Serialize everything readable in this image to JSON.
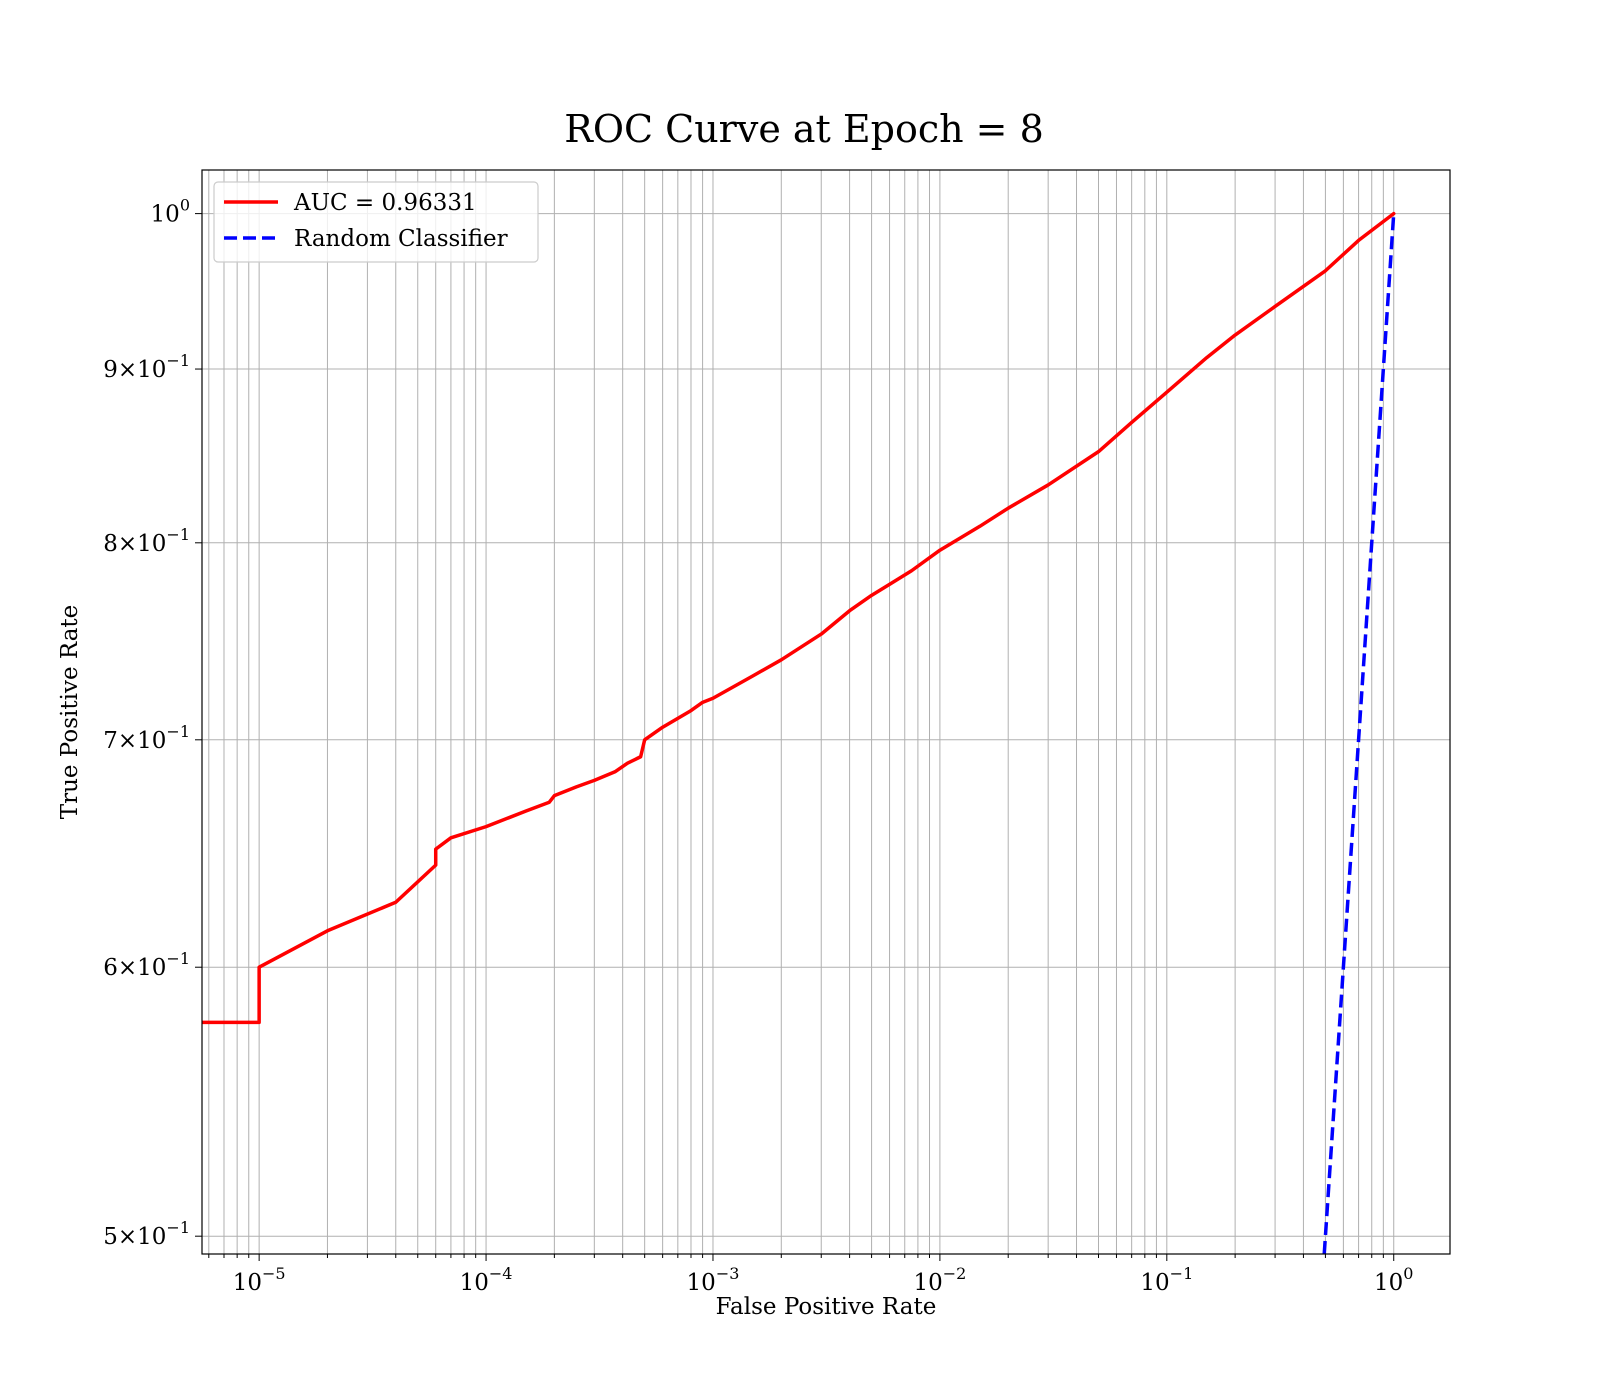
{
  "chart_data": {
    "type": "line",
    "title": "ROC Curve at Epoch = 8",
    "xlabel": "False Positive Rate",
    "ylabel": "True Positive Rate",
    "xscale": "log",
    "yscale": "log",
    "xlim": [
      5.6e-06,
      1.77
    ],
    "ylim": [
      0.494,
      1.03
    ],
    "grid": true,
    "legend_position": "top-left",
    "x_ticks": [
      {
        "base": "10",
        "exp": "−5",
        "value": 1e-05
      },
      {
        "base": "10",
        "exp": "−4",
        "value": 0.0001
      },
      {
        "base": "10",
        "exp": "−3",
        "value": 0.001
      },
      {
        "base": "10",
        "exp": "−2",
        "value": 0.01
      },
      {
        "base": "10",
        "exp": "−1",
        "value": 0.1
      },
      {
        "base": "10",
        "exp": "0",
        "value": 1
      }
    ],
    "y_ticks": [
      {
        "mant": "5",
        "base": "10",
        "exp": "−1",
        "value": 0.5
      },
      {
        "mant": "6",
        "base": "10",
        "exp": "−1",
        "value": 0.6
      },
      {
        "mant": "7",
        "base": "10",
        "exp": "−1",
        "value": 0.7
      },
      {
        "mant": "8",
        "base": "10",
        "exp": "−1",
        "value": 0.8
      },
      {
        "mant": "9",
        "base": "10",
        "exp": "−1",
        "value": 0.9
      },
      {
        "mant": "",
        "base": "10",
        "exp": "0",
        "value": 1
      }
    ],
    "series": [
      {
        "name": "AUC = 0.96331",
        "color": "#ff0000",
        "style": "solid",
        "points": [
          [
            5.6e-06,
            0.578
          ],
          [
            1e-05,
            0.578
          ],
          [
            1e-05,
            0.6
          ],
          [
            2e-05,
            0.615
          ],
          [
            4e-05,
            0.627
          ],
          [
            6e-05,
            0.643
          ],
          [
            6e-05,
            0.65
          ],
          [
            7e-05,
            0.655
          ],
          [
            0.0001,
            0.66
          ],
          [
            0.00015,
            0.667
          ],
          [
            0.00019,
            0.671
          ],
          [
            0.0002,
            0.674
          ],
          [
            0.00025,
            0.678
          ],
          [
            0.0003,
            0.681
          ],
          [
            0.00037,
            0.685
          ],
          [
            0.00042,
            0.689
          ],
          [
            0.00048,
            0.692
          ],
          [
            0.0005,
            0.7
          ],
          [
            0.0006,
            0.706
          ],
          [
            0.0008,
            0.714
          ],
          [
            0.0009,
            0.718
          ],
          [
            0.001,
            0.72
          ],
          [
            0.0015,
            0.731
          ],
          [
            0.002,
            0.739
          ],
          [
            0.003,
            0.752
          ],
          [
            0.004,
            0.764
          ],
          [
            0.005,
            0.772
          ],
          [
            0.0075,
            0.785
          ],
          [
            0.01,
            0.796
          ],
          [
            0.015,
            0.809
          ],
          [
            0.02,
            0.819
          ],
          [
            0.03,
            0.832
          ],
          [
            0.05,
            0.851
          ],
          [
            0.07,
            0.868
          ],
          [
            0.1,
            0.886
          ],
          [
            0.15,
            0.907
          ],
          [
            0.2,
            0.921
          ],
          [
            0.3,
            0.939
          ],
          [
            0.5,
            0.962
          ],
          [
            0.7,
            0.982
          ],
          [
            1.0,
            1.0
          ]
        ]
      },
      {
        "name": "Random Classifier",
        "color": "#0000ff",
        "style": "dashed",
        "points": [
          [
            0.494,
            0.494
          ],
          [
            1.0,
            1.0
          ]
        ]
      }
    ]
  }
}
